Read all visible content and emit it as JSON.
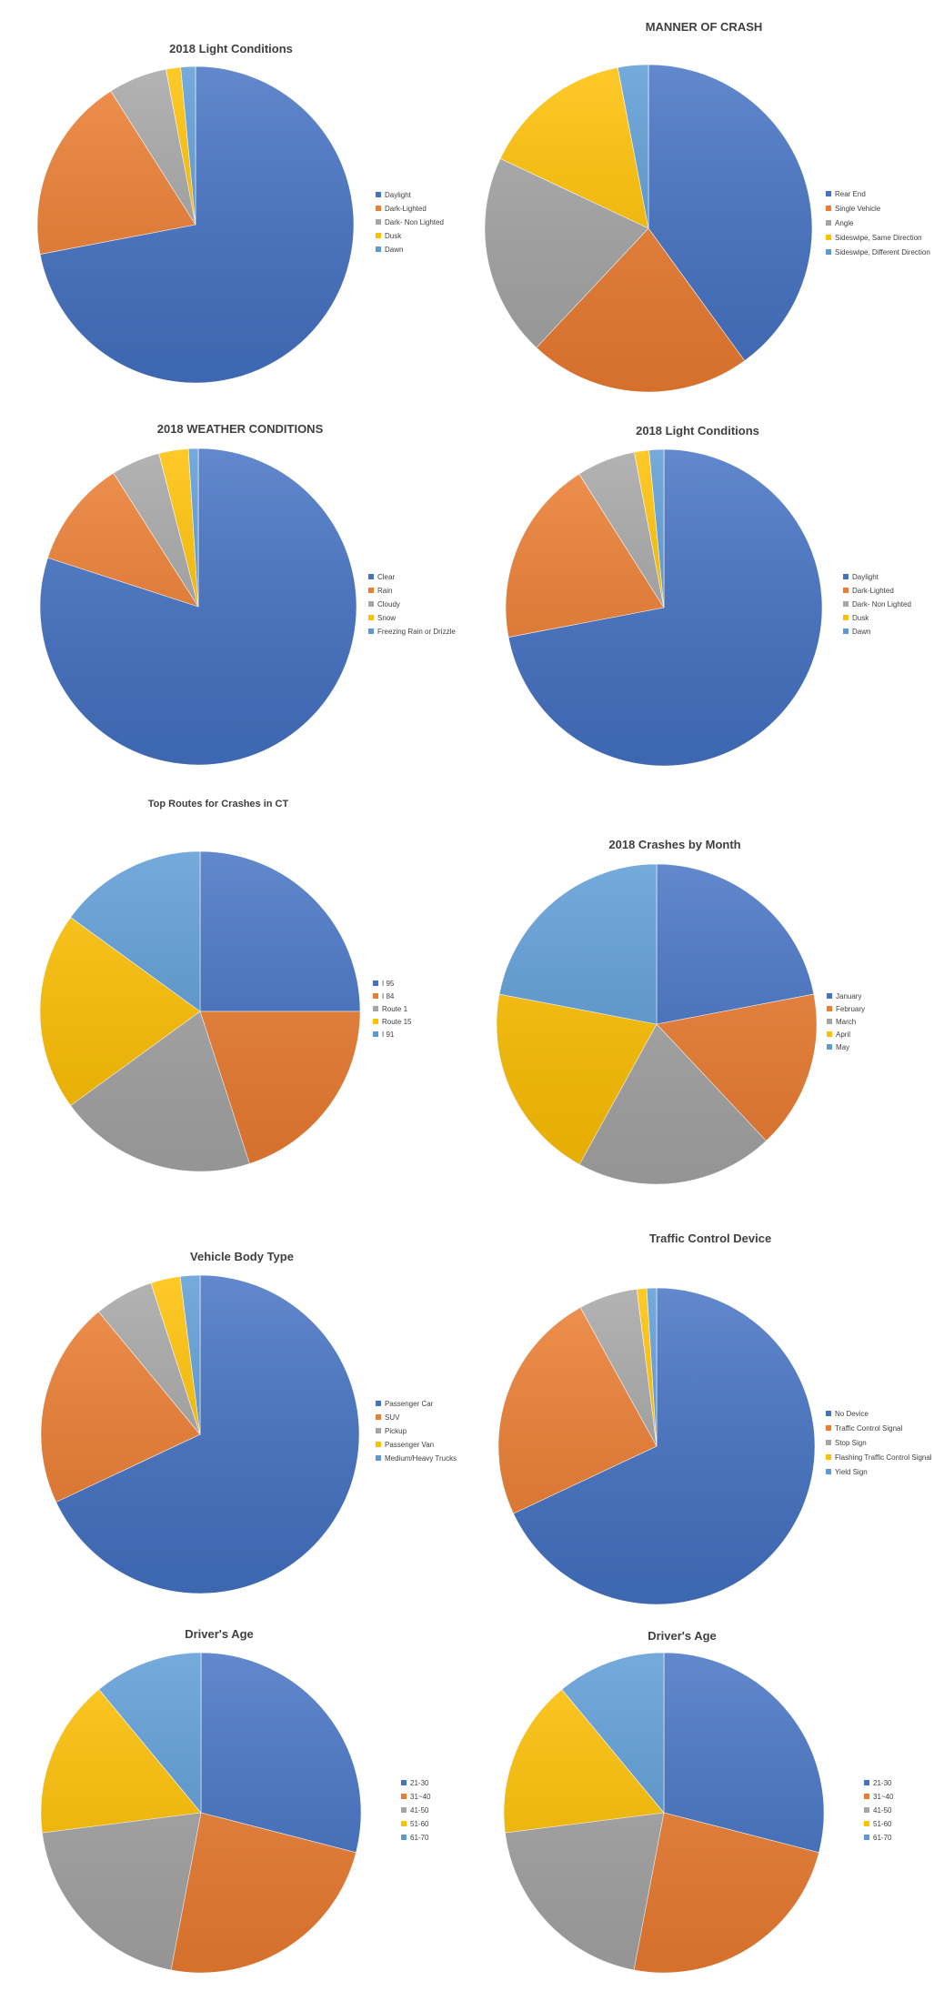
{
  "palette": [
    "#4472C4",
    "#ED7D31",
    "#A5A5A5",
    "#FFC000",
    "#5B9BD5"
  ],
  "chart_data": [
    {
      "type": "pie",
      "title": "2018 Light Conditions",
      "categories": [
        "Daylight",
        "Dark-Lighted",
        "Dark- Non Lighted",
        "Dusk",
        "Dawn"
      ],
      "values": [
        72,
        19,
        6,
        1.5,
        1.5
      ],
      "legend": "right"
    },
    {
      "type": "pie",
      "title": "MANNER OF CRASH",
      "categories": [
        "Rear End",
        "Single Vehicle",
        "Angle",
        "Sideswipe, Same Direction",
        "Sideswipe, Different Direction"
      ],
      "values": [
        40,
        22,
        20,
        15,
        3
      ],
      "legend": "right"
    },
    {
      "type": "pie",
      "title": "2018 WEATHER CONDITIONS",
      "categories": [
        "Clear",
        "Rain",
        "Cloudy",
        "Snow",
        "Freezing Rain or Drizzle"
      ],
      "values": [
        80,
        11,
        5,
        3,
        1
      ],
      "legend": "right"
    },
    {
      "type": "pie",
      "title": "2018 Light Conditions",
      "categories": [
        "Daylight",
        "Dark-Lighted",
        "Dark- Non Lighted",
        "Dusk",
        "Dawn"
      ],
      "values": [
        72,
        19,
        6,
        1.5,
        1.5
      ],
      "legend": "right"
    },
    {
      "type": "pie",
      "title": "Top Routes for Crashes in CT",
      "categories": [
        "I 95",
        "I 84",
        "Route 1",
        "Route 15",
        "I 91"
      ],
      "values": [
        25,
        20,
        20,
        20,
        15
      ],
      "legend": "right"
    },
    {
      "type": "pie",
      "title": "2018 Crashes by Month",
      "categories": [
        "January",
        "February",
        "March",
        "April",
        "May"
      ],
      "values": [
        22,
        16,
        20,
        20,
        22
      ],
      "legend": "right"
    },
    {
      "type": "pie",
      "title": "Vehicle Body Type",
      "categories": [
        "Passenger Car",
        "SUV",
        "Pickup",
        "Passenger Van",
        "Medium/Heavy Trucks"
      ],
      "values": [
        68,
        21,
        6,
        3,
        2
      ],
      "legend": "right"
    },
    {
      "type": "pie",
      "title": "Traffic Control Device",
      "categories": [
        "No Device",
        "Traffic Control Signal",
        "Stop Sign",
        "Flashing Traffic Control Signal",
        "Yield Sign"
      ],
      "values": [
        68,
        24,
        6,
        1,
        1
      ],
      "legend": "right"
    },
    {
      "type": "pie",
      "title": "Driver's Age",
      "categories": [
        "21-30",
        "31~40",
        "41-50",
        "51-60",
        "61-70"
      ],
      "values": [
        29,
        24,
        20,
        16,
        11
      ],
      "legend": "right"
    },
    {
      "type": "pie",
      "title": "Driver's Age",
      "categories": [
        "21-30",
        "31~40",
        "41-50",
        "51-60",
        "61-70"
      ],
      "values": [
        29,
        24,
        20,
        16,
        11
      ],
      "legend": "right"
    }
  ]
}
